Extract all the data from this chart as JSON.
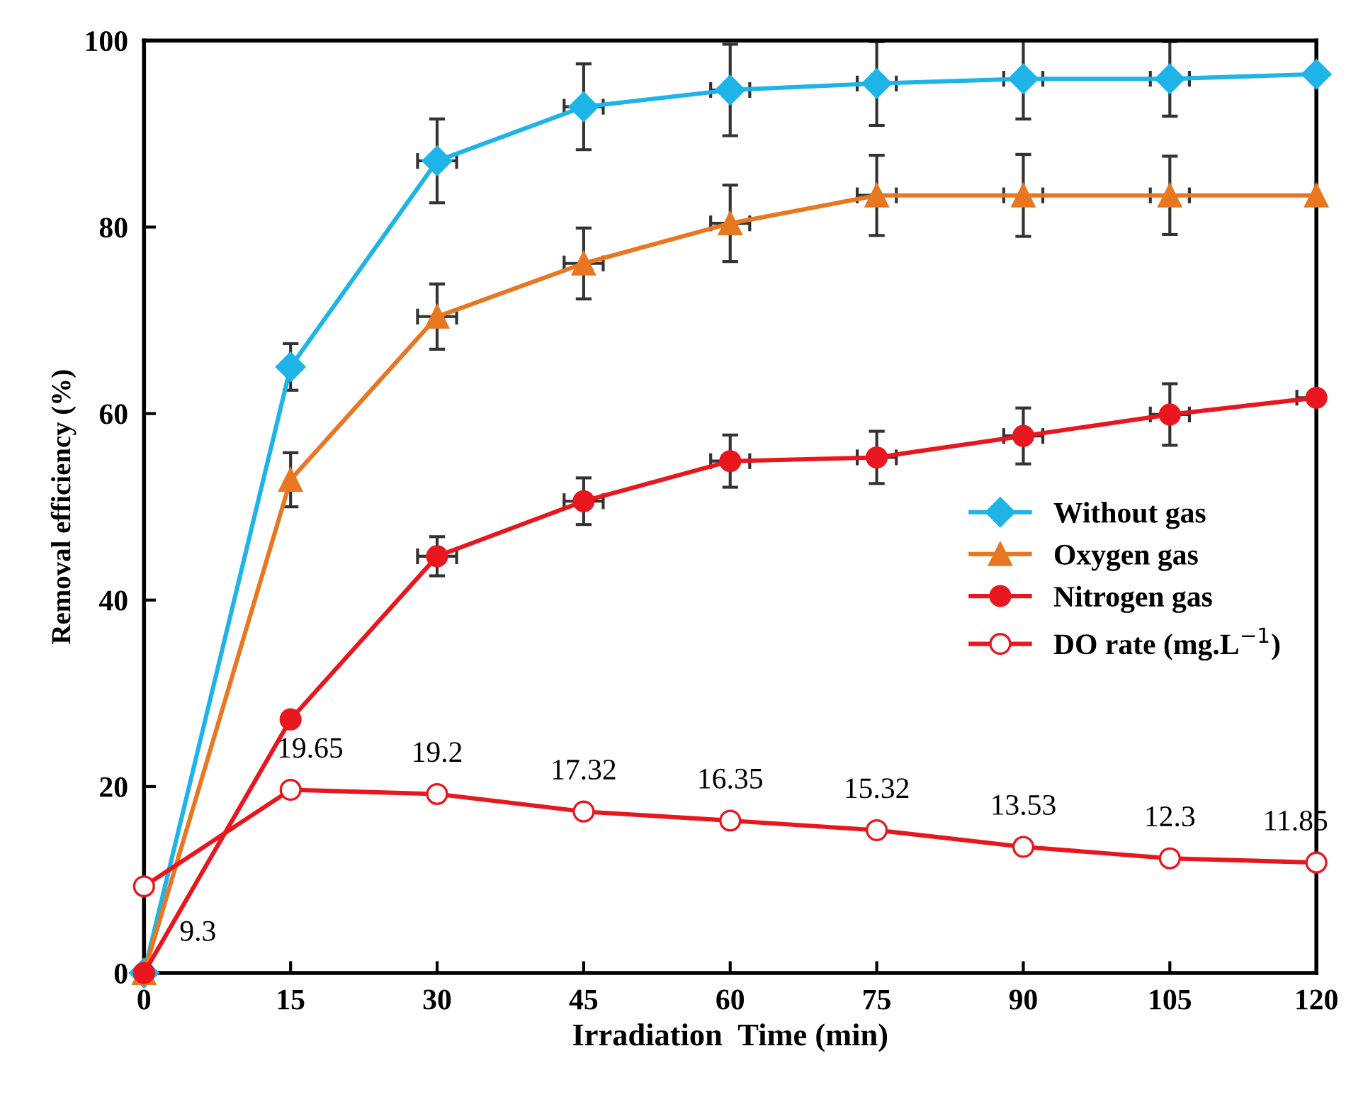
{
  "chart_data": {
    "type": "line",
    "xlabel": "Irradiation  Time (min)",
    "ylabel": "Removal efficiency (%)",
    "x": [
      0,
      15,
      30,
      45,
      60,
      75,
      90,
      105,
      120
    ],
    "xlim": [
      0,
      120
    ],
    "xticks": [
      0,
      15,
      30,
      45,
      60,
      75,
      90,
      105,
      120
    ],
    "ylim": [
      0,
      100
    ],
    "yticks": [
      0,
      20,
      40,
      60,
      80,
      100
    ],
    "grid": false,
    "legend": "right",
    "line_style": "solid",
    "series": [
      {
        "name": "Without gas",
        "color": "#1fb4e8",
        "marker": "diamond",
        "values": [
          0,
          65.0,
          87.1,
          92.9,
          94.7,
          95.4,
          95.9,
          95.9,
          96.4
        ],
        "errors": [
          null,
          2.5,
          4.5,
          4.6,
          4.9,
          4.5,
          4.3,
          4.0,
          null
        ],
        "xerrors": [
          null,
          null,
          2,
          2,
          2,
          2,
          2,
          2,
          null
        ]
      },
      {
        "name": "Oxygen gas",
        "color": "#e87722",
        "marker": "triangle",
        "values": [
          0,
          52.9,
          70.4,
          76.1,
          80.4,
          83.4,
          83.4,
          83.4,
          83.4
        ],
        "errors": [
          null,
          2.9,
          3.5,
          3.8,
          4.1,
          4.3,
          4.4,
          4.2,
          null
        ],
        "xerrors": [
          null,
          null,
          2,
          2,
          2,
          2,
          2,
          2,
          null
        ]
      },
      {
        "name": "Nitrogen gas",
        "color": "#e8171f",
        "marker": "circle",
        "values": [
          0,
          27.2,
          44.7,
          50.6,
          54.9,
          55.3,
          57.6,
          59.9,
          61.7
        ],
        "errors": [
          null,
          null,
          2.1,
          2.5,
          2.8,
          2.8,
          3.0,
          3.3,
          null
        ],
        "xerrors": [
          null,
          null,
          2,
          2,
          2,
          2,
          2,
          2,
          2
        ]
      },
      {
        "name": "DO rate (mg.L$^{−1}$)",
        "color": "#e8171f",
        "marker": "circle",
        "data_labels": true,
        "values": [
          9.3,
          19.65,
          19.2,
          17.32,
          16.35,
          15.32,
          13.53,
          12.3,
          11.85
        ]
      }
    ]
  }
}
